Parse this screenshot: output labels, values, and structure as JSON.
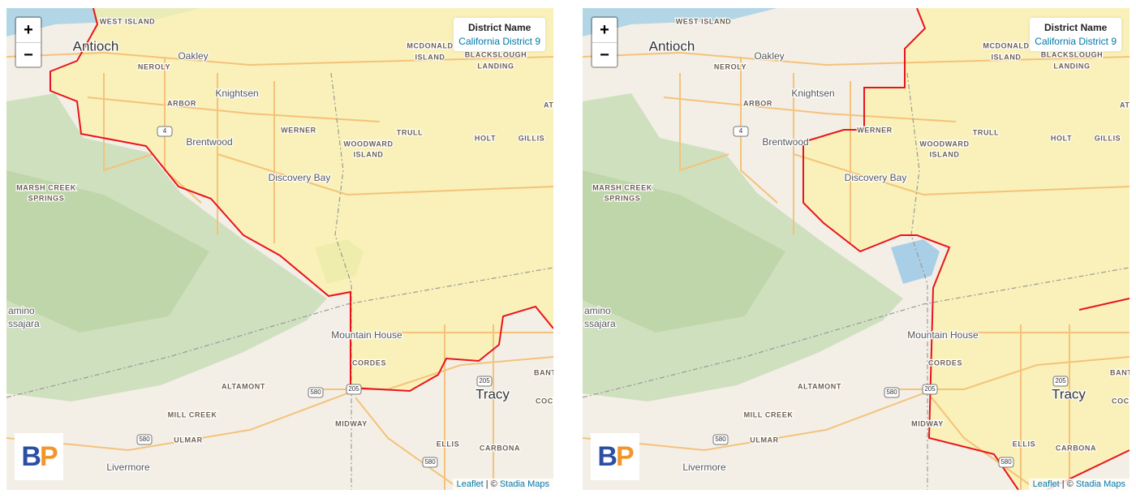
{
  "maps": [
    {
      "zoom_in": "+",
      "zoom_out": "−",
      "legend": {
        "title": "District Name",
        "value": "California District 9"
      },
      "logo": {
        "b": "B",
        "p": "P"
      },
      "attribution": {
        "leaflet": "Leaflet",
        "separator": "| ©",
        "provider": "Stadia Maps"
      },
      "labels": [
        "WEST ISLAND",
        "Antioch",
        "Oakley",
        "NEROLY",
        "Knightsen",
        "ARBOR",
        "Brentwood",
        "WERNER",
        "TRULL",
        "HOLT",
        "GILLIS",
        "WOODWARD",
        "ISLAND",
        "MCDONALD",
        "ISLAND",
        "BLACKSLOUGH",
        "LANDING",
        "Discovery Bay",
        "MARSH CREEK",
        "SPRINGS",
        "Mountain House",
        "CORDES",
        "ALTAMONT",
        "Tracy",
        "MILL CREEK",
        "MIDWAY",
        "ULMAR",
        "ELLIS",
        "CARBONA",
        "Livermore",
        "amino",
        "ssajara",
        "BANTA",
        "COCH",
        "ATI"
      ],
      "shields": [
        "4",
        "580",
        "205",
        "580",
        "580",
        "205"
      ]
    },
    {
      "zoom_in": "+",
      "zoom_out": "−",
      "legend": {
        "title": "District Name",
        "value": "California District 9"
      },
      "logo": {
        "b": "B",
        "p": "P"
      },
      "attribution": {
        "leaflet": "Leaflet",
        "separator": "| ©",
        "provider": "Stadia Maps"
      },
      "labels": [
        "WEST ISLAND",
        "Antioch",
        "Oakley",
        "NEROLY",
        "Knightsen",
        "ARBOR",
        "Brentwood",
        "WERNER",
        "TRULL",
        "HOLT",
        "GILLIS",
        "WOODWARD",
        "ISLAND",
        "MCDONALD",
        "ISLAND",
        "BLACKSLOUGH",
        "LANDING",
        "Discovery Bay",
        "MARSH CREEK",
        "SPRINGS",
        "Mountain House",
        "CORDES",
        "ALTAMONT",
        "Tracy",
        "MILL CREEK",
        "MIDWAY",
        "ULMAR",
        "ELLIS",
        "CARBONA",
        "Livermore",
        "amino",
        "ssajara",
        "BANTA",
        "COCH",
        "ATI"
      ],
      "shields": [
        "4",
        "580",
        "205",
        "580",
        "580",
        "205"
      ]
    }
  ]
}
